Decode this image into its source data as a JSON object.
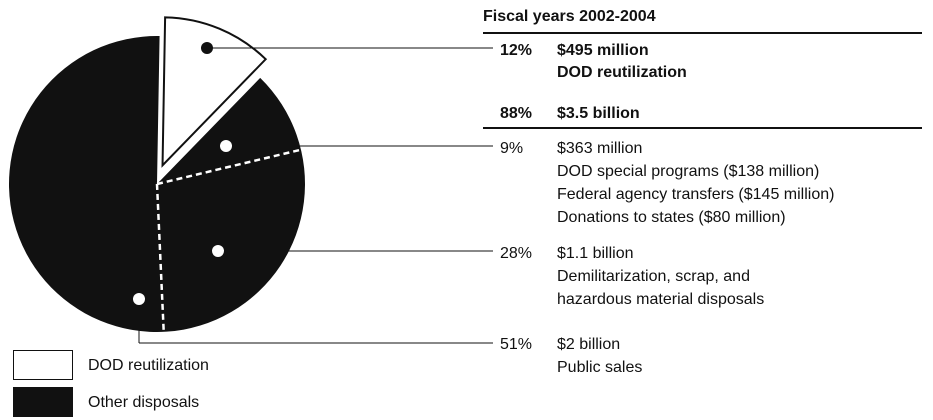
{
  "chart_data": {
    "type": "pie",
    "title": "Fiscal years 2002-2004",
    "slices": [
      {
        "name": "DOD reutilization",
        "percent": 12,
        "amount": "$495 million",
        "color": "#ffffff"
      },
      {
        "name": "Other disposals",
        "percent": 88,
        "amount": "$3.5 billion",
        "color": "#111111",
        "subdivisions": [
          {
            "percent": 9,
            "amount": "$363 million",
            "lines": [
              "DOD special programs ($138 million)",
              "Federal agency transfers ($145 million)",
              "Donations to states ($80 million)"
            ]
          },
          {
            "percent": 28,
            "amount": "$1.1 billion",
            "lines": [
              "Demilitarization, scrap, and",
              "hazardous material disposals"
            ]
          },
          {
            "percent": 51,
            "amount": "$2 billion",
            "lines": [
              "Public sales"
            ]
          }
        ]
      }
    ],
    "labels": [
      {
        "pct": "12%",
        "amount": "$495 million",
        "desc": "DOD reutilization"
      },
      {
        "pct": "88%",
        "amount": "$3.5 billion"
      },
      {
        "pct": "9%",
        "amount": "$363 million",
        "lines": [
          "DOD special programs ($138 million)",
          "Federal agency transfers ($145 million)",
          "Donations to states ($80 million)"
        ]
      },
      {
        "pct": "28%",
        "amount": "$1.1 billion",
        "lines": [
          "Demilitarization, scrap, and",
          "hazardous material disposals"
        ]
      },
      {
        "pct": "51%",
        "amount": "$2 billion",
        "lines": [
          "Public sales"
        ]
      }
    ],
    "legend": [
      {
        "label": "DOD reutilization",
        "color": "#ffffff"
      },
      {
        "label": "Other disposals",
        "color": "#111111"
      }
    ]
  }
}
